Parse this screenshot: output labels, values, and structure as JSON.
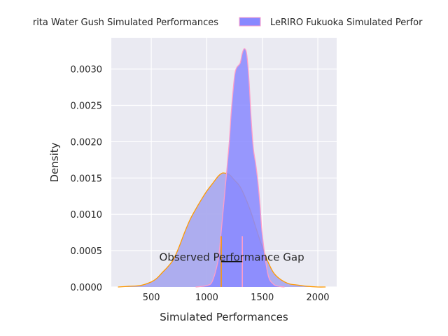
{
  "chart_data": {
    "type": "area",
    "title": "",
    "xlabel": "Simulated Performances",
    "ylabel": "Density",
    "xlim": [
      140,
      2170
    ],
    "ylim": [
      0,
      0.00343
    ],
    "xticks": [
      500,
      1000,
      1500,
      2000
    ],
    "xtick_labels": [
      "500",
      "1000",
      "1500",
      "2000"
    ],
    "yticks": [
      0,
      0.0005,
      0.001,
      0.0015,
      0.002,
      0.0025,
      0.003
    ],
    "ytick_labels": [
      "0.0000",
      "0.0005",
      "0.0010",
      "0.0015",
      "0.0020",
      "0.0025",
      "0.0030"
    ],
    "grid": true,
    "legend_placement": "top",
    "series": [
      {
        "name": "Miyuki Kurita Water Gush Simulated Performances",
        "legend_visible_text": "rita Water Gush Simulated Performances",
        "fill": "#aaaaee",
        "edge": "#ff9900",
        "x": [
          200,
          300,
          400,
          500,
          550,
          600,
          650,
          700,
          750,
          800,
          850,
          900,
          950,
          1000,
          1050,
          1100,
          1130,
          1150,
          1200,
          1250,
          1300,
          1350,
          1400,
          1450,
          1500,
          1550,
          1600,
          1650,
          1700,
          1750,
          1800,
          1850,
          1900,
          2000,
          2070
        ],
        "y": [
          0,
          1e-05,
          2e-05,
          7e-05,
          0.00012,
          0.0002,
          0.00028,
          0.00038,
          0.00055,
          0.00075,
          0.00093,
          0.00107,
          0.0012,
          0.00132,
          0.00142,
          0.00152,
          0.00156,
          0.00157,
          0.00155,
          0.00147,
          0.00138,
          0.00122,
          0.00102,
          0.00078,
          0.00055,
          0.00035,
          0.0002,
          0.00012,
          7e-05,
          4e-05,
          3e-05,
          2e-05,
          1e-05,
          0,
          0
        ]
      },
      {
        "name": "LeRIRO Fukuoka Simulated Performances",
        "legend_visible_text": "LeRIRO Fukuoka Simulated Perfor",
        "fill": "#8888ff",
        "edge": "#ff9ec8",
        "x": [
          900,
          1000,
          1050,
          1100,
          1120,
          1150,
          1200,
          1220,
          1250,
          1270,
          1300,
          1320,
          1340,
          1360,
          1380,
          1400,
          1420,
          1440,
          1460,
          1480,
          1500,
          1550,
          1600,
          1650,
          1700
        ],
        "y": [
          0,
          2e-05,
          8e-05,
          0.00035,
          0.0006,
          0.0011,
          0.00195,
          0.0024,
          0.0029,
          0.00302,
          0.00308,
          0.00322,
          0.00328,
          0.0032,
          0.00285,
          0.0023,
          0.0019,
          0.0017,
          0.00145,
          0.00112,
          0.00072,
          0.00018,
          4e-05,
          1e-05,
          0
        ]
      }
    ],
    "observed_lines": [
      {
        "x": 1130,
        "height": 0.0007,
        "color": "#ff9900"
      },
      {
        "x": 1320,
        "height": 0.0007,
        "color": "#ff9ec8"
      }
    ],
    "gap_segment": {
      "x1": 1130,
      "x2": 1320,
      "y": 0.00035
    },
    "annotation": "Observed Performance Gap"
  }
}
